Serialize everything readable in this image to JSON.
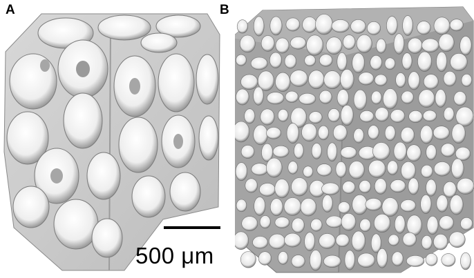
{
  "figure": {
    "panels": [
      {
        "label": "A"
      },
      {
        "label": "B"
      }
    ],
    "scale_bar": {
      "text": "500 μm"
    }
  }
}
